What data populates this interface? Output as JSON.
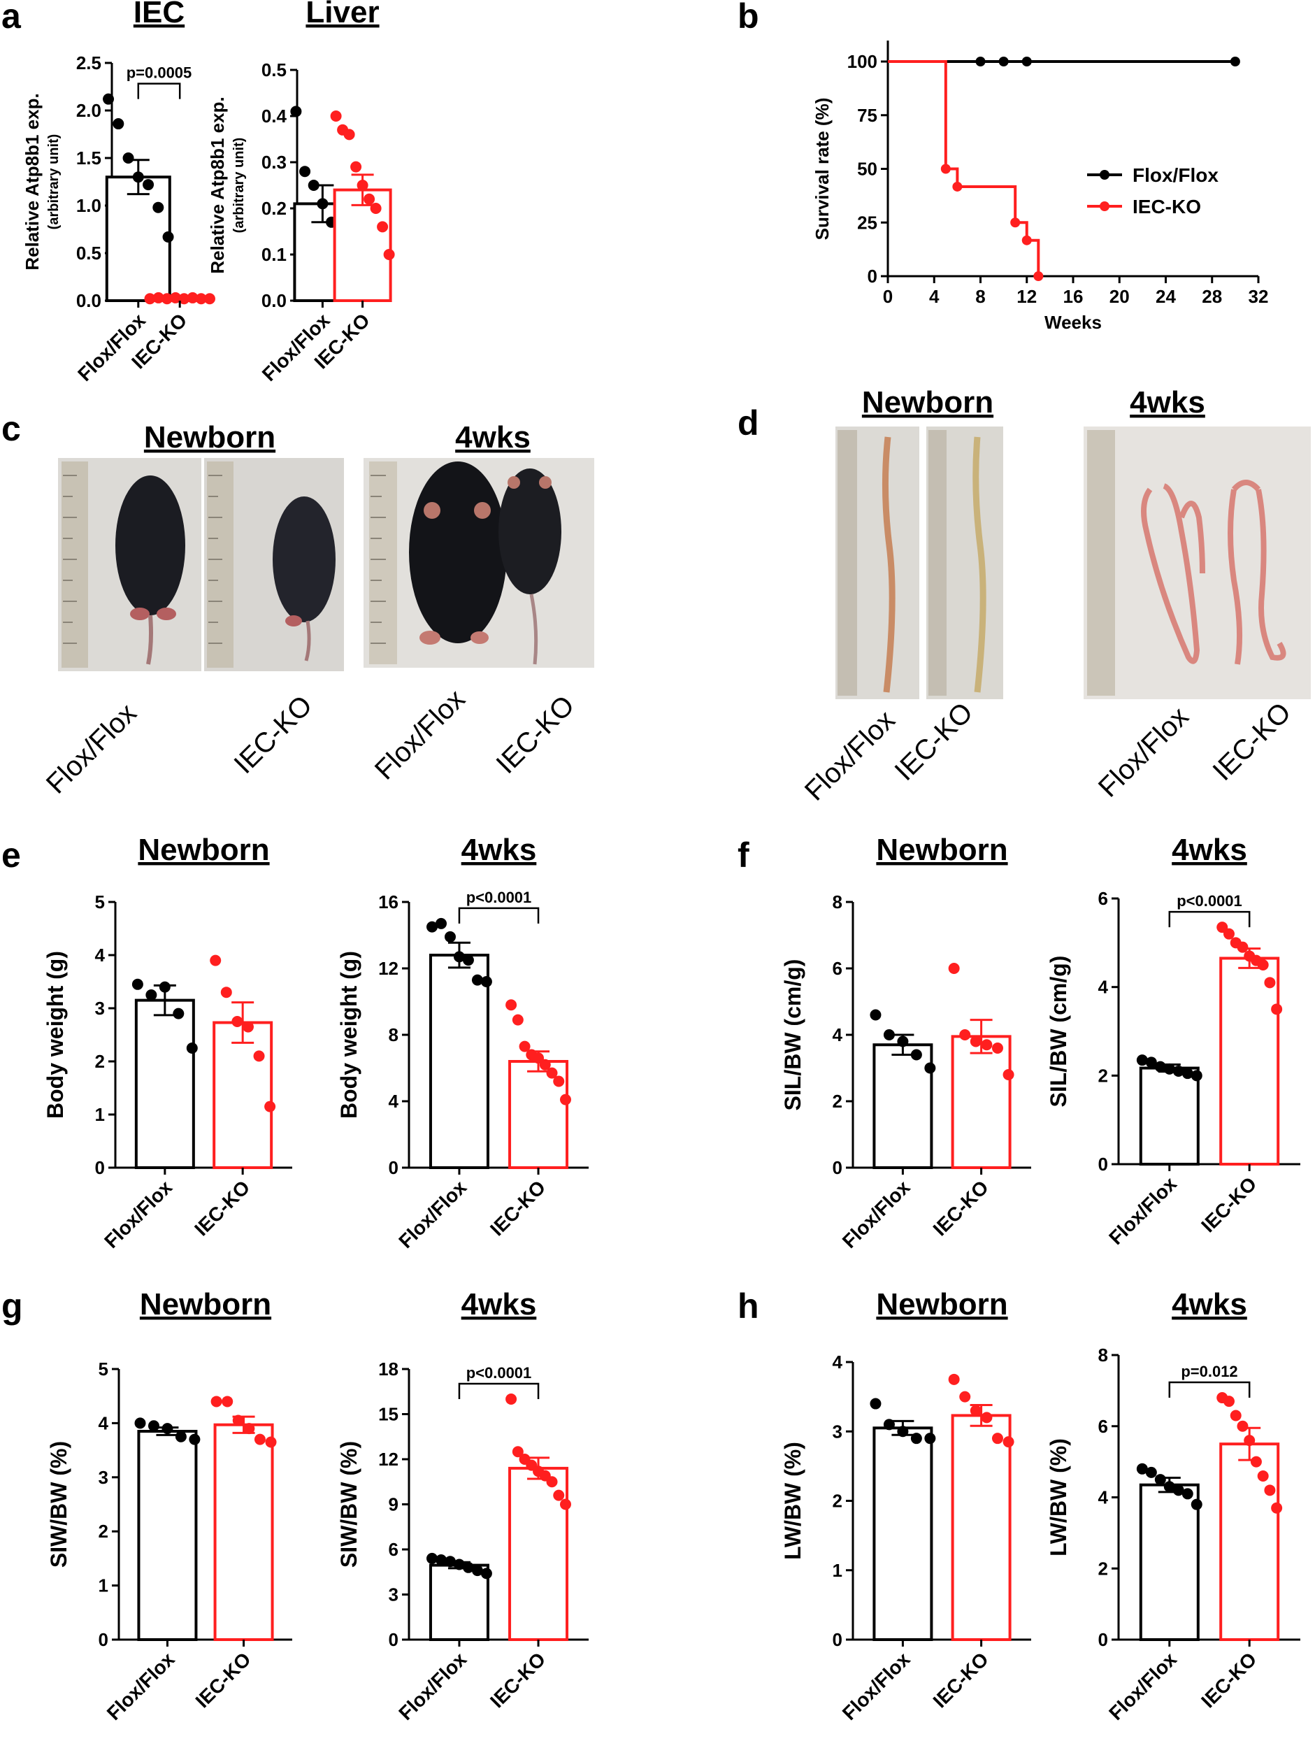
{
  "panels": {
    "a": "a",
    "b": "b",
    "c": "c",
    "d": "d",
    "e": "e",
    "f": "f",
    "g": "g",
    "h": "h"
  },
  "groups": {
    "ctrl": "Flox/Flox",
    "ko": "IEC-KO"
  },
  "colors": {
    "ctrl": "#000000",
    "ko": "#ff1f1f"
  },
  "photo_c": {
    "newborn_title": "Newborn",
    "wk4_title": "4wks",
    "labels": [
      "Flox/Flox",
      "IEC-KO",
      "Flox/Flox",
      "IEC-KO"
    ]
  },
  "photo_d": {
    "newborn_title": "Newborn",
    "wk4_title": "4wks",
    "labels": [
      "Flox/Flox",
      "IEC-KO",
      "Flox/Flox",
      "IEC-KO"
    ]
  },
  "chart_data": [
    {
      "id": "a1",
      "type": "bar",
      "title": "IEC",
      "ylabel": "Relative Atp8b1 exp.",
      "ylabel2": "(arbitrary unit)",
      "ylim": [
        0,
        2.5
      ],
      "yticks": [
        "0.0",
        "0.5",
        "1.0",
        "1.5",
        "2.0",
        "2.5"
      ],
      "categories": [
        "Flox/Flox",
        "IEC-KO"
      ],
      "means": [
        1.3,
        0.02
      ],
      "sem": [
        0.18,
        0.005
      ],
      "points": [
        [
          2.12,
          1.86,
          1.5,
          1.3,
          1.22,
          0.98,
          0.67
        ],
        [
          0.02,
          0.03,
          0.02,
          0.03,
          0.02,
          0.03,
          0.02,
          0.02
        ]
      ],
      "pvalue": "p=0.0005"
    },
    {
      "id": "a2",
      "type": "bar",
      "title": "Liver",
      "ylabel": "Relative Atp8b1 exp.",
      "ylabel2": "(arbitrary unit)",
      "ylim": [
        0,
        0.5
      ],
      "yticks": [
        "0.0",
        "0.1",
        "0.2",
        "0.3",
        "0.4",
        "0.5"
      ],
      "categories": [
        "Flox/Flox",
        "IEC-KO"
      ],
      "means": [
        0.21,
        0.24
      ],
      "sem": [
        0.04,
        0.033
      ],
      "points": [
        [
          0.41,
          0.28,
          0.25,
          0.21,
          0.17,
          0.15,
          0.14
        ],
        [
          0.4,
          0.37,
          0.36,
          0.29,
          0.25,
          0.22,
          0.2,
          0.16,
          0.1
        ]
      ],
      "pvalue": ""
    },
    {
      "id": "b",
      "type": "line",
      "xlabel": "Weeks",
      "ylabel": "Survival rate (%)",
      "xlim": [
        0,
        32
      ],
      "ylim": [
        0,
        100
      ],
      "xticks": [
        "0",
        "4",
        "8",
        "12",
        "16",
        "20",
        "24",
        "28",
        "32"
      ],
      "yticks": [
        "0",
        "25",
        "50",
        "75",
        "100"
      ],
      "series": [
        {
          "name": "Flox/Flox",
          "steps": [
            [
              0,
              100
            ],
            [
              30,
              100
            ]
          ],
          "markers": [
            [
              8,
              100
            ],
            [
              10,
              100
            ],
            [
              12,
              100
            ],
            [
              30,
              100
            ]
          ]
        },
        {
          "name": "IEC-KO",
          "steps": [
            [
              0,
              100
            ],
            [
              5,
              100
            ],
            [
              5,
              50
            ],
            [
              6,
              50
            ],
            [
              6,
              41.7
            ],
            [
              11,
              41.7
            ],
            [
              11,
              25
            ],
            [
              12,
              25
            ],
            [
              12,
              16.7
            ],
            [
              13,
              16.7
            ],
            [
              13,
              0
            ]
          ],
          "markers": [
            [
              5,
              50
            ],
            [
              6,
              41.7
            ],
            [
              11,
              25
            ],
            [
              12,
              16.7
            ],
            [
              13,
              0
            ]
          ]
        }
      ],
      "legend": [
        "Flox/Flox",
        "IEC-KO"
      ]
    },
    {
      "id": "e1",
      "type": "bar",
      "title": "Newborn",
      "ylabel": "Body weight (g)",
      "ylim": [
        0,
        5
      ],
      "yticks": [
        "0",
        "1",
        "2",
        "3",
        "4",
        "5"
      ],
      "categories": [
        "Flox/Flox",
        "IEC-KO"
      ],
      "means": [
        3.15,
        2.73
      ],
      "sem": [
        0.28,
        0.38
      ],
      "points": [
        [
          3.45,
          3.25,
          3.4,
          2.9,
          2.25
        ],
        [
          3.9,
          3.3,
          2.75,
          2.65,
          2.1,
          1.15
        ]
      ],
      "pvalue": ""
    },
    {
      "id": "e2",
      "type": "bar",
      "title": "4wks",
      "ylabel": "Body weight (g)",
      "ylim": [
        0,
        16
      ],
      "yticks": [
        "0",
        "4",
        "8",
        "12",
        "16"
      ],
      "categories": [
        "Flox/Flox",
        "IEC-KO"
      ],
      "means": [
        12.8,
        6.4
      ],
      "sem": [
        0.75,
        0.6
      ],
      "points": [
        [
          14.5,
          14.7,
          13.9,
          12.7,
          12.5,
          11.3,
          11.2
        ],
        [
          9.8,
          8.9,
          7.3,
          6.8,
          6.6,
          6.2,
          5.7,
          5.2,
          4.1
        ]
      ],
      "pvalue": "p<0.0001"
    },
    {
      "id": "f1",
      "type": "bar",
      "title": "Newborn",
      "ylabel": "SIL/BW (cm/g)",
      "ylim": [
        0,
        8
      ],
      "yticks": [
        "0",
        "2",
        "4",
        "6",
        "8"
      ],
      "categories": [
        "Flox/Flox",
        "IEC-KO"
      ],
      "means": [
        3.7,
        3.95
      ],
      "sem": [
        0.3,
        0.5
      ],
      "points": [
        [
          4.6,
          4.0,
          3.8,
          3.4,
          3.0
        ],
        [
          6.0,
          4.0,
          3.8,
          3.7,
          3.6,
          2.8
        ]
      ],
      "pvalue": ""
    },
    {
      "id": "f2",
      "type": "bar",
      "title": "4wks",
      "ylabel": "SIL/BW (cm/g)",
      "ylim": [
        0,
        6
      ],
      "yticks": [
        "0",
        "2",
        "4",
        "6"
      ],
      "categories": [
        "Flox/Flox",
        "IEC-KO"
      ],
      "means": [
        2.17,
        4.65
      ],
      "sem": [
        0.08,
        0.22
      ],
      "points": [
        [
          2.35,
          2.3,
          2.2,
          2.15,
          2.1,
          2.05,
          2.0
        ],
        [
          5.35,
          5.2,
          5.0,
          4.9,
          4.7,
          4.6,
          4.5,
          4.1,
          3.5
        ]
      ],
      "pvalue": "p<0.0001"
    },
    {
      "id": "g1",
      "type": "bar",
      "title": "Newborn",
      "ylabel": "SIW/BW (%)",
      "ylim": [
        0,
        5
      ],
      "yticks": [
        "0",
        "1",
        "2",
        "3",
        "4",
        "5"
      ],
      "categories": [
        "Flox/Flox",
        "IEC-KO"
      ],
      "means": [
        3.85,
        3.97
      ],
      "sem": [
        0.07,
        0.15
      ],
      "points": [
        [
          4.0,
          3.95,
          3.9,
          3.75,
          3.7
        ],
        [
          4.4,
          4.4,
          4.05,
          3.9,
          3.7,
          3.65
        ]
      ],
      "pvalue": ""
    },
    {
      "id": "g2",
      "type": "bar",
      "title": "4wks",
      "ylabel": "SIW/BW (%)",
      "ylim": [
        0,
        18
      ],
      "yticks": [
        "0",
        "3",
        "6",
        "9",
        "12",
        "15",
        "18"
      ],
      "categories": [
        "Flox/Flox",
        "IEC-KO"
      ],
      "means": [
        4.95,
        11.4
      ],
      "sem": [
        0.2,
        0.7
      ],
      "points": [
        [
          5.4,
          5.3,
          5.2,
          5.0,
          4.8,
          4.6,
          4.4
        ],
        [
          16.0,
          12.5,
          12.0,
          11.6,
          11.2,
          10.9,
          10.5,
          9.6,
          9.0
        ]
      ],
      "pvalue": "p<0.0001"
    },
    {
      "id": "h1",
      "type": "bar",
      "title": "Newborn",
      "ylabel": "LW/BW (%)",
      "ylim": [
        0,
        4
      ],
      "yticks": [
        "0",
        "1",
        "2",
        "3",
        "4"
      ],
      "categories": [
        "Flox/Flox",
        "IEC-KO"
      ],
      "means": [
        3.05,
        3.23
      ],
      "sem": [
        0.1,
        0.15
      ],
      "points": [
        [
          3.4,
          3.1,
          3.0,
          2.9,
          2.9
        ],
        [
          3.75,
          3.5,
          3.3,
          3.2,
          2.9,
          2.85
        ]
      ],
      "pvalue": ""
    },
    {
      "id": "h2",
      "type": "bar",
      "title": "4wks",
      "ylabel": "LW/BW (%)",
      "ylim": [
        0,
        8
      ],
      "yticks": [
        "0",
        "2",
        "4",
        "6",
        "8"
      ],
      "categories": [
        "Flox/Flox",
        "IEC-KO"
      ],
      "means": [
        4.35,
        5.5
      ],
      "sem": [
        0.2,
        0.45
      ],
      "points": [
        [
          4.8,
          4.7,
          4.5,
          4.3,
          4.2,
          4.1,
          3.8
        ],
        [
          6.8,
          6.7,
          6.3,
          6.0,
          5.6,
          5.0,
          4.6,
          4.2,
          3.7
        ]
      ],
      "pvalue": "p=0.012"
    }
  ]
}
